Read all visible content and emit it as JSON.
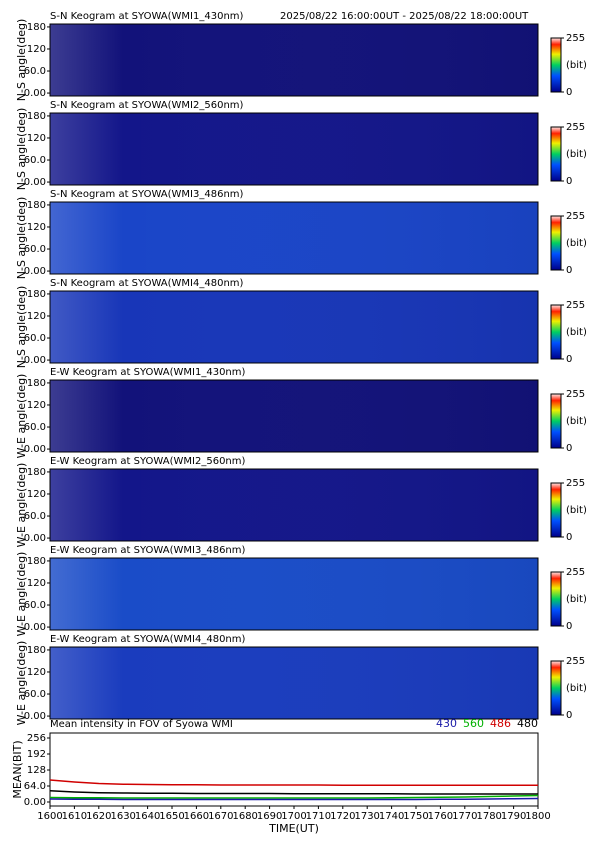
{
  "time_range": "2025/08/22 16:00:00UT - 2025/08/22 18:00:00UT",
  "chart_data": [
    {
      "type": "heatmap",
      "title": "S-N Keogram at SYOWA(WMI1_430nm)",
      "ylabel": "N-S angle(deg)",
      "color": "#12127a",
      "ylim": [
        -8,
        188
      ],
      "yticks": [
        {
          "value": 0,
          "label": "0.00"
        },
        {
          "value": 60,
          "label": "60.0"
        },
        120,
        180
      ],
      "clim": [
        0,
        255
      ],
      "cticks": [
        0,
        255
      ],
      "clabel": "(bit)"
    },
    {
      "type": "heatmap",
      "title": "S-N Keogram at SYOWA(WMI2_560nm)",
      "ylabel": "N-S angle(deg)",
      "color": "#13168a",
      "ylim": [
        -8,
        188
      ],
      "yticks": [
        {
          "value": 0,
          "label": "0.00"
        },
        {
          "value": 60,
          "label": "60.0"
        },
        120,
        180
      ],
      "clim": [
        0,
        255
      ],
      "cticks": [
        0,
        255
      ],
      "clabel": "(bit)"
    },
    {
      "type": "heatmap",
      "title": "S-N Keogram at SYOWA(WMI3_486nm)",
      "ylabel": "N-S angle(deg)",
      "color": "#1a45c8",
      "ylim": [
        -8,
        188
      ],
      "yticks": [
        {
          "value": 0,
          "label": "0.00"
        },
        {
          "value": 60,
          "label": "60.0"
        },
        120,
        180
      ],
      "clim": [
        0,
        255
      ],
      "cticks": [
        0,
        255
      ],
      "clabel": "(bit)"
    },
    {
      "type": "heatmap",
      "title": "S-N Keogram at SYOWA(WMI4_480nm)",
      "ylabel": "N-S angle(deg)",
      "color": "#1836b8",
      "ylim": [
        -8,
        188
      ],
      "yticks": [
        {
          "value": 0,
          "label": "0.00"
        },
        {
          "value": 60,
          "label": "60.0"
        },
        120,
        180
      ],
      "clim": [
        0,
        255
      ],
      "cticks": [
        0,
        255
      ],
      "clabel": "(bit)"
    },
    {
      "type": "heatmap",
      "title": "E-W Keogram at SYOWA(WMI1_430nm)",
      "ylabel": "W-E angle(deg)",
      "color": "#12127a",
      "ylim": [
        -8,
        188
      ],
      "yticks": [
        {
          "value": 0,
          "label": "0.00"
        },
        {
          "value": 60,
          "label": "60.0"
        },
        120,
        180
      ],
      "clim": [
        0,
        255
      ],
      "cticks": [
        0,
        255
      ],
      "clabel": "(bit)"
    },
    {
      "type": "heatmap",
      "title": "E-W Keogram at SYOWA(WMI2_560nm)",
      "ylabel": "W-E angle(deg)",
      "color": "#13168a",
      "ylim": [
        -8,
        188
      ],
      "yticks": [
        {
          "value": 0,
          "label": "0.00"
        },
        {
          "value": 60,
          "label": "60.0"
        },
        120,
        180
      ],
      "clim": [
        0,
        255
      ],
      "cticks": [
        0,
        255
      ],
      "clabel": "(bit)"
    },
    {
      "type": "heatmap",
      "title": "E-W Keogram at SYOWA(WMI3_486nm)",
      "ylabel": "W-E angle(deg)",
      "color": "#1a4cc8",
      "ylim": [
        -8,
        188
      ],
      "yticks": [
        {
          "value": 0,
          "label": "0.00"
        },
        {
          "value": 60,
          "label": "60.0"
        },
        120,
        180
      ],
      "clim": [
        0,
        255
      ],
      "cticks": [
        0,
        255
      ],
      "clabel": "(bit)"
    },
    {
      "type": "heatmap",
      "title": "E-W Keogram at SYOWA(WMI4_480nm)",
      "ylabel": "W-E angle(deg)",
      "color": "#1a3cbe",
      "ylim": [
        -8,
        188
      ],
      "yticks": [
        {
          "value": 0,
          "label": "0.00"
        },
        {
          "value": 60,
          "label": "60.0"
        },
        120,
        180
      ],
      "clim": [
        0,
        255
      ],
      "cticks": [
        0,
        255
      ],
      "clabel": "(bit)"
    },
    {
      "type": "line",
      "title": "Mean intensity in FOV of Syowa WMI",
      "xlabel": "TIME(UT)",
      "ylabel": "MEAN(BIT)",
      "x": [
        1600,
        1610,
        1620,
        1630,
        1640,
        1650,
        1660,
        1670,
        1680,
        1690,
        1700,
        1710,
        1720,
        1730,
        1740,
        1750,
        1760,
        1770,
        1780,
        1790,
        1800
      ],
      "xlim": [
        1600,
        1800
      ],
      "xticks": [
        1600,
        1610,
        1620,
        1630,
        1640,
        1650,
        1660,
        1670,
        1680,
        1690,
        1700,
        1710,
        1720,
        1730,
        1740,
        1750,
        1760,
        1770,
        1780,
        1790,
        1800
      ],
      "ylim": [
        -16,
        276
      ],
      "yticks": [
        {
          "value": 0,
          "label": "0.00"
        },
        {
          "value": 64,
          "label": "64.0"
        },
        128,
        192,
        256
      ],
      "series": [
        {
          "name": "430",
          "color": "#1a1aa8",
          "values": [
            12,
            11,
            11,
            10,
            10,
            10,
            10,
            10,
            10,
            10,
            10,
            10,
            10,
            10,
            10,
            10,
            11,
            11,
            12,
            13,
            14
          ]
        },
        {
          "name": "560",
          "color": "#00b000",
          "values": [
            18,
            17,
            17,
            16,
            16,
            16,
            16,
            16,
            16,
            16,
            16,
            16,
            16,
            16,
            17,
            18,
            19,
            20,
            22,
            24,
            26
          ]
        },
        {
          "name": "486",
          "color": "#d00000",
          "values": [
            88,
            80,
            74,
            71,
            70,
            69,
            69,
            68,
            68,
            68,
            68,
            68,
            67,
            67,
            67,
            67,
            67,
            67,
            67,
            67,
            67
          ]
        },
        {
          "name": "480",
          "color": "#000000",
          "values": [
            45,
            40,
            37,
            36,
            35,
            35,
            34,
            34,
            34,
            34,
            33,
            33,
            33,
            33,
            33,
            32,
            32,
            32,
            32,
            32,
            32
          ]
        }
      ]
    }
  ]
}
